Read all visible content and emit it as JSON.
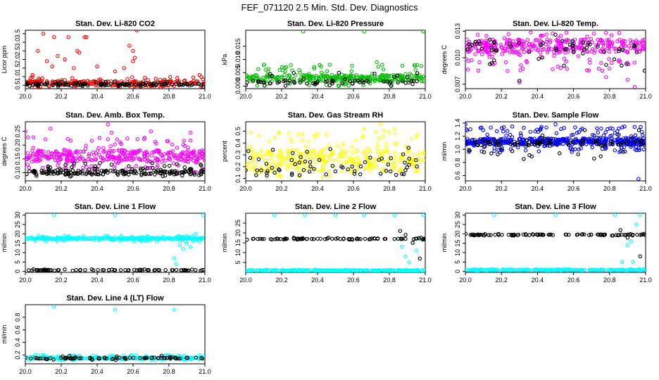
{
  "figure_title": "FEF_071120  2.5 Min. Std. Dev. Diagnostics",
  "colors": {
    "black": "#000000",
    "red": "#ff0000",
    "green": "#00bb00",
    "magenta": "#ff00ff",
    "yellow": "#ffff00",
    "blue": "#0000ff",
    "cyan": "#00ffff"
  },
  "chart_data": [
    {
      "id": "li820-co2",
      "type": "scatter",
      "title": "Stan. Dev. Li-820 CO2",
      "ylabel": "Licor ppm",
      "xlim": [
        20.0,
        21.0
      ],
      "ylim": [
        0.3,
        3.7
      ],
      "xticks": [
        "20.0",
        "20.2",
        "20.4",
        "20.6",
        "20.8",
        "21.0"
      ],
      "yticks": [
        "0.5",
        "1.0",
        "1.5",
        "2.0",
        "2.5",
        "3.0",
        "3.5"
      ],
      "series": [
        {
          "name": "primary",
          "color": "red",
          "baseline": 0.6,
          "spread": 0.5,
          "range": [
            0.35,
            1.0
          ],
          "n": 240,
          "seed": 11,
          "extra": [
            [
              20.1,
              3.5
            ],
            [
              20.16,
              3.3
            ],
            [
              20.24,
              3.3
            ],
            [
              20.29,
              2.5
            ],
            [
              20.3,
              2.4
            ],
            [
              20.33,
              3.3
            ],
            [
              20.07,
              2.5
            ],
            [
              20.18,
              2.2
            ],
            [
              20.22,
              2.0
            ],
            [
              20.58,
              2.8
            ],
            [
              20.6,
              2.5
            ],
            [
              20.62,
              3.7
            ],
            [
              20.61,
              2.1
            ],
            [
              20.34,
              3.3
            ],
            [
              20.12,
              1.9
            ],
            [
              20.4,
              1.6
            ],
            [
              20.5,
              1.3
            ],
            [
              20.55,
              1.5
            ],
            [
              20.6,
              1.9
            ],
            [
              20.97,
              1.1
            ],
            [
              20.04,
              1.1
            ],
            [
              20.15,
              1.6
            ],
            [
              20.27,
              1.5
            ]
          ]
        },
        {
          "name": "secondary",
          "color": "black",
          "baseline": 0.55,
          "spread": 0.15,
          "range": [
            0.4,
            0.7
          ],
          "n": 120,
          "seed": 12
        }
      ]
    },
    {
      "id": "li820-pressure",
      "type": "scatter",
      "title": "Stan. Dev. Li-820 Pressure",
      "ylabel": "kPa",
      "xlim": [
        20.0,
        21.0
      ],
      "ylim": [
        -0.001,
        0.021
      ],
      "xticks": [
        "20.0",
        "20.2",
        "20.4",
        "20.6",
        "20.8",
        "21.0"
      ],
      "yticks": [
        "0.000",
        "0.005",
        "0.010",
        "0.015"
      ],
      "series": [
        {
          "name": "primary",
          "color": "green",
          "baseline": 0.003,
          "spread": 0.004,
          "range": [
            0.0,
            0.008
          ],
          "n": 320,
          "seed": 21,
          "extra": [
            [
              20.32,
              0.0205
            ],
            [
              20.66,
              0.0205
            ],
            [
              20.99,
              0.0205
            ],
            [
              20.73,
              0.009
            ],
            [
              20.76,
              0.008
            ]
          ]
        },
        {
          "name": "secondary",
          "color": "black",
          "baseline": 0.0015,
          "spread": 0.002,
          "range": [
            0.0,
            0.005
          ],
          "n": 70,
          "seed": 22
        }
      ]
    },
    {
      "id": "li820-temp",
      "type": "scatter",
      "title": "Stan. Dev. Li-820 Temp.",
      "ylabel": "degrees C",
      "xlim": [
        20.0,
        21.0
      ],
      "ylim": [
        0.0065,
        0.0131
      ],
      "xticks": [
        "20.0",
        "20.2",
        "20.4",
        "20.6",
        "20.8",
        "21.0"
      ],
      "yticks": [
        "0.007",
        "0.010",
        "0.013"
      ],
      "series": [
        {
          "name": "primary",
          "color": "magenta",
          "baseline": 0.0113,
          "spread": 0.0025,
          "range": [
            0.0085,
            0.013
          ],
          "n": 380,
          "seed": 31,
          "extra": [
            [
              20.3,
              0.0072
            ],
            [
              20.94,
              0.0067
            ],
            [
              20.9,
              0.0075
            ],
            [
              20.78,
              0.0078
            ]
          ]
        },
        {
          "name": "secondary",
          "color": "black",
          "baseline": 0.0112,
          "spread": 0.0025,
          "range": [
            0.0085,
            0.013
          ],
          "n": 60,
          "seed": 32,
          "extra": [
            [
              20.3,
              0.0074
            ],
            [
              20.5,
              0.0126
            ]
          ]
        }
      ]
    },
    {
      "id": "amb-box-temp",
      "type": "scatter",
      "title": "Stan. Dev. Amb. Box Temp.",
      "ylabel": "degrees C",
      "xlim": [
        20.0,
        21.0
      ],
      "ylim": [
        0.07,
        0.285
      ],
      "xticks": [
        "20.0",
        "20.2",
        "20.4",
        "20.6",
        "20.8",
        "21.0"
      ],
      "yticks": [
        "0.10",
        "0.15",
        "0.20",
        "0.25"
      ],
      "series": [
        {
          "name": "primary",
          "color": "magenta",
          "baseline": 0.16,
          "spread": 0.07,
          "range": [
            0.1,
            0.23
          ],
          "n": 380,
          "seed": 41,
          "extra": [
            [
              20.0,
              0.25
            ],
            [
              20.14,
              0.26
            ],
            [
              20.46,
              0.275
            ],
            [
              20.48,
              0.245
            ],
            [
              20.7,
              0.25
            ],
            [
              20.92,
              0.245
            ]
          ]
        },
        {
          "name": "secondary",
          "color": "black",
          "baseline": 0.1,
          "spread": 0.025,
          "range": [
            0.085,
            0.135
          ],
          "n": 200,
          "seed": 42
        }
      ]
    },
    {
      "id": "gas-stream-rh",
      "type": "scatter",
      "title": "Stan. Dev. Gas Stream RH",
      "ylabel": "percent",
      "xlim": [
        20.0,
        21.0
      ],
      "ylim": [
        0.08,
        0.58
      ],
      "xticks": [
        "20.0",
        "20.2",
        "20.4",
        "20.6",
        "20.8",
        "21.0"
      ],
      "yticks": [
        "0.1",
        "0.2",
        "0.3",
        "0.4",
        "0.5"
      ],
      "series": [
        {
          "name": "primary",
          "color": "yellow",
          "baseline": 0.25,
          "spread": 0.3,
          "range": [
            0.1,
            0.52
          ],
          "n": 330,
          "seed": 51,
          "extra": [
            [
              20.75,
              0.56
            ],
            [
              20.66,
              0.52
            ],
            [
              20.8,
              0.49
            ]
          ]
        },
        {
          "name": "secondary",
          "color": "black",
          "baseline": 0.2,
          "spread": 0.25,
          "range": [
            0.12,
            0.44
          ],
          "n": 65,
          "seed": 52
        }
      ]
    },
    {
      "id": "sample-flow",
      "type": "scatter",
      "title": "Stan. Dev. Sample Flow",
      "ylabel": "ml/min",
      "xlim": [
        20.0,
        21.0
      ],
      "ylim": [
        0.52,
        1.42
      ],
      "xticks": [
        "20.0",
        "20.2",
        "20.4",
        "20.6",
        "20.8",
        "21.0"
      ],
      "yticks": [
        "0.6",
        "0.8",
        "1.0",
        "1.2",
        "1.4"
      ],
      "series": [
        {
          "name": "primary",
          "color": "blue",
          "baseline": 1.12,
          "spread": 0.16,
          "range": [
            0.95,
            1.35
          ],
          "n": 480,
          "seed": 61,
          "extra": [
            [
              20.0,
              1.38
            ],
            [
              20.5,
              1.38
            ],
            [
              20.96,
              0.55
            ]
          ]
        },
        {
          "name": "secondary",
          "color": "black",
          "baseline": 1.1,
          "spread": 0.14,
          "range": [
            0.85,
            1.3
          ],
          "n": 90,
          "seed": 62
        }
      ]
    },
    {
      "id": "line1-flow",
      "type": "scatter",
      "title": "Stan. Dev. Line 1 Flow",
      "ylabel": "ml/min",
      "xlim": [
        20.0,
        21.0
      ],
      "ylim": [
        -0.5,
        31
      ],
      "xticks": [
        "20.0",
        "20.2",
        "20.4",
        "20.6",
        "20.8",
        "21.0"
      ],
      "yticks": [
        "0",
        "5",
        "10",
        "15",
        "20",
        "25",
        "30"
      ],
      "series": [
        {
          "name": "primary",
          "color": "cyan",
          "baseline": 17.5,
          "spread": 1.2,
          "range": [
            16,
            19
          ],
          "n": 330,
          "seed": 71,
          "extra": [
            [
              20.16,
              30
            ],
            [
              20.5,
              30
            ],
            [
              20.99,
              30
            ],
            [
              20.83,
              7
            ],
            [
              20.84,
              4
            ],
            [
              20.86,
              14
            ],
            [
              20.88,
              12
            ],
            [
              20.9,
              15
            ],
            [
              20.92,
              13
            ],
            [
              20.95,
              20
            ],
            [
              20.97,
              16
            ]
          ]
        },
        {
          "name": "secondary",
          "color": "black",
          "baseline": 0.7,
          "spread": 0.4,
          "range": [
            0.3,
            1.2
          ],
          "n": 75,
          "seed": 72
        }
      ]
    },
    {
      "id": "line2-flow",
      "type": "scatter",
      "title": "Stan. Dev. Line 2 Flow",
      "ylabel": "ml/min",
      "xlim": [
        20.0,
        21.0
      ],
      "ylim": [
        0,
        30
      ],
      "xticks": [
        "20.0",
        "20.2",
        "20.4",
        "20.6",
        "20.8",
        "21.0"
      ],
      "yticks": [
        "5",
        "10",
        "15",
        "20",
        "25"
      ],
      "series": [
        {
          "name": "primary",
          "color": "cyan",
          "baseline": 1.0,
          "spread": 0.4,
          "range": [
            0.6,
            1.4
          ],
          "n": 260,
          "seed": 81,
          "extra": [
            [
              20.16,
              29
            ],
            [
              20.33,
              29
            ],
            [
              20.5,
              29
            ],
            [
              20.66,
              29
            ],
            [
              20.83,
              29
            ],
            [
              20.99,
              29
            ],
            [
              20.85,
              17
            ],
            [
              20.87,
              13
            ],
            [
              20.89,
              8
            ],
            [
              20.91,
              5
            ],
            [
              20.93,
              15
            ],
            [
              20.95,
              11
            ],
            [
              20.97,
              17
            ]
          ]
        },
        {
          "name": "secondary",
          "color": "black",
          "baseline": 17.0,
          "spread": 0.5,
          "range": [
            16.5,
            17.6
          ],
          "n": 85,
          "seed": 82,
          "extra": [
            [
              20.86,
              21
            ],
            [
              20.89,
              19
            ],
            [
              20.93,
              15
            ],
            [
              20.97,
              7
            ],
            [
              20.99,
              17
            ]
          ]
        }
      ]
    },
    {
      "id": "line3-flow",
      "type": "scatter",
      "title": "Stan. Dev. Line 3 Flow",
      "ylabel": "ml/min",
      "xlim": [
        20.0,
        21.0
      ],
      "ylim": [
        -0.5,
        31
      ],
      "xticks": [
        "20.0",
        "20.2",
        "20.4",
        "20.6",
        "20.8",
        "21.0"
      ],
      "yticks": [
        "0",
        "5",
        "10",
        "15",
        "20",
        "25",
        "30"
      ],
      "series": [
        {
          "name": "primary",
          "color": "cyan",
          "baseline": 0.8,
          "spread": 0.4,
          "range": [
            0.4,
            1.2
          ],
          "n": 260,
          "seed": 91,
          "extra": [
            [
              20.16,
              30
            ],
            [
              20.5,
              30
            ],
            [
              20.83,
              30
            ],
            [
              20.97,
              30
            ],
            [
              20.87,
              5
            ],
            [
              20.93,
              5
            ],
            [
              20.95,
              25
            ],
            [
              20.9,
              14
            ],
            [
              20.92,
              16
            ]
          ]
        },
        {
          "name": "secondary",
          "color": "black",
          "baseline": 19.5,
          "spread": 0.6,
          "range": [
            19,
            20
          ],
          "n": 90,
          "seed": 92,
          "extra": [
            [
              20.86,
              22
            ],
            [
              20.9,
              18
            ],
            [
              20.97,
              8
            ],
            [
              20.99,
              20
            ]
          ]
        }
      ]
    },
    {
      "id": "line4-lt-flow",
      "type": "scatter",
      "title": "Stan. Dev. Line 4 (LT) Flow",
      "ylabel": "ml/min",
      "xlim": [
        20.0,
        21.0
      ],
      "ylim": [
        0.06,
        1.0
      ],
      "xticks": [
        "20.0",
        "20.2",
        "20.4",
        "20.6",
        "20.8",
        "21.0"
      ],
      "yticks": [
        "0.2",
        "0.4",
        "0.6",
        "0.8"
      ],
      "series": [
        {
          "name": "primary",
          "color": "cyan",
          "baseline": 0.15,
          "spread": 0.04,
          "range": [
            0.12,
            0.2
          ],
          "n": 330,
          "seed": 101,
          "extra": [
            [
              20.16,
              0.97
            ],
            [
              20.5,
              0.92
            ],
            [
              20.83,
              0.92
            ]
          ]
        },
        {
          "name": "secondary",
          "color": "black",
          "baseline": 0.15,
          "spread": 0.03,
          "range": [
            0.12,
            0.19
          ],
          "n": 80,
          "seed": 102
        }
      ]
    }
  ]
}
